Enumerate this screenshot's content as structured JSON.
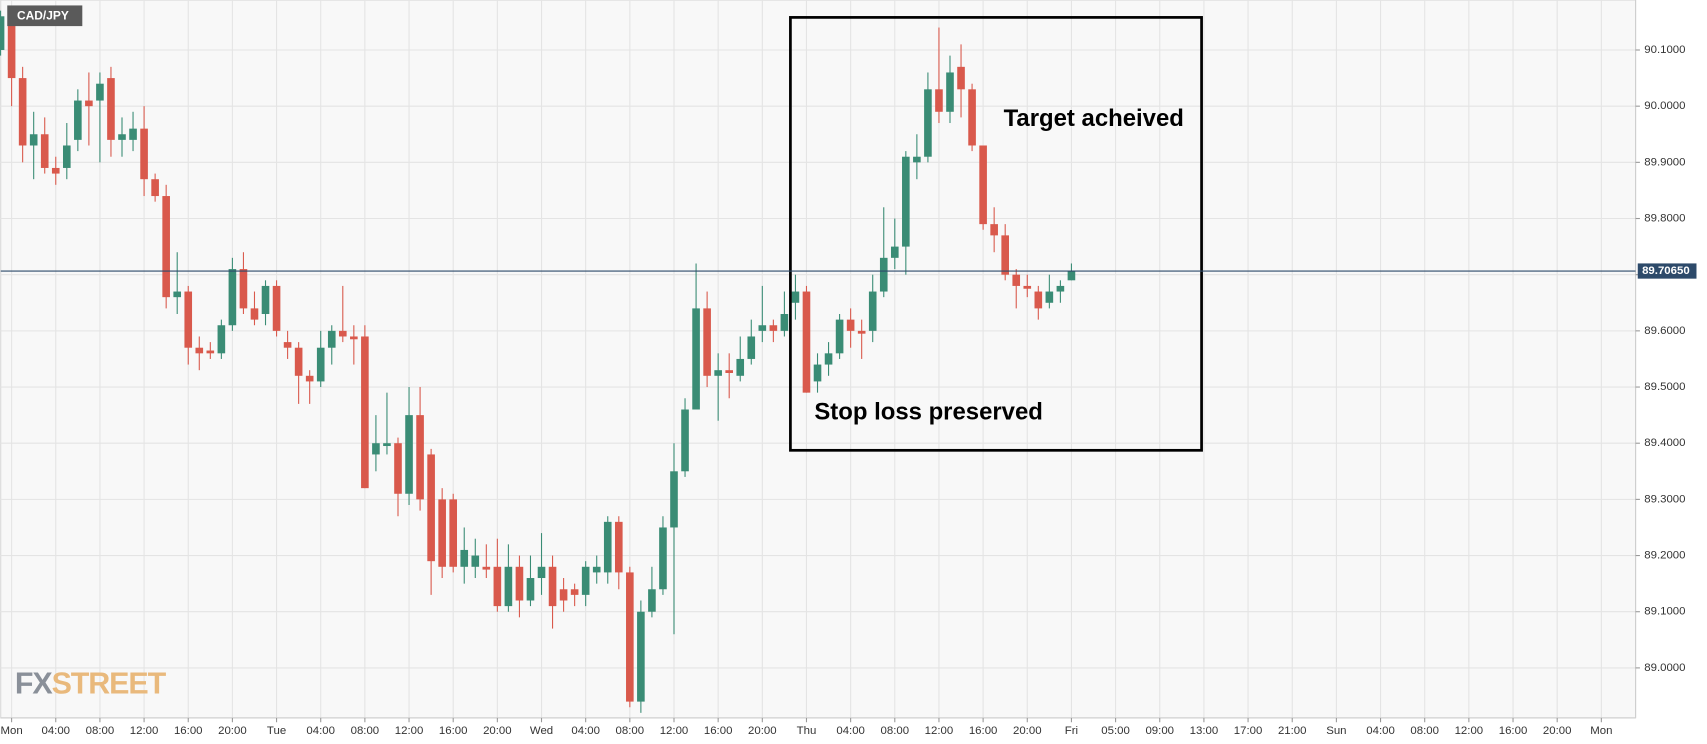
{
  "chart_data": {
    "type": "candlestick",
    "title": "CAD/JPY",
    "logo": [
      "FX",
      "STREET"
    ],
    "annotations": [
      "Target acheived",
      "Stop loss preserved"
    ],
    "up_color": "#3a8c75",
    "down_color": "#d9594c",
    "x": [
      -1,
      0,
      1,
      2,
      3,
      4,
      5,
      6,
      7,
      8,
      9,
      10,
      11,
      12,
      13,
      14,
      15,
      16,
      17,
      18,
      19,
      20,
      21,
      22,
      23,
      24,
      25,
      26,
      27,
      28,
      29,
      30,
      31,
      32,
      33,
      34,
      35,
      36,
      37,
      38,
      39,
      40,
      41,
      42,
      43,
      44,
      45,
      46,
      47,
      48,
      49,
      50,
      51,
      52,
      53,
      54,
      55,
      56,
      57,
      58,
      59,
      60,
      61,
      62,
      63,
      64,
      65,
      66,
      67,
      68,
      69,
      70,
      71,
      72,
      73,
      74,
      75,
      76,
      77,
      78,
      79,
      80,
      81,
      82,
      83,
      84,
      85,
      86,
      87,
      88,
      89,
      90,
      91,
      92,
      93,
      94,
      95,
      96
    ],
    "open": [
      90.1,
      90.15,
      90.05,
      89.93,
      89.95,
      89.89,
      89.89,
      89.94,
      90.01,
      90.01,
      90.05,
      89.94,
      89.94,
      89.96,
      89.87,
      89.84,
      89.66,
      89.67,
      89.57,
      89.565,
      89.56,
      89.61,
      89.71,
      89.64,
      89.63,
      89.68,
      89.58,
      89.57,
      89.52,
      89.51,
      89.57,
      89.6,
      89.59,
      89.59,
      89.38,
      89.395,
      89.4,
      89.31,
      89.45,
      89.38,
      89.3,
      89.3,
      89.18,
      89.18,
      89.18,
      89.18,
      89.11,
      89.18,
      89.12,
      89.16,
      89.18,
      89.14,
      89.14,
      89.13,
      89.17,
      89.17,
      89.26,
      89.17,
      88.94,
      89.1,
      89.14,
      89.25,
      89.35,
      89.46,
      89.64,
      89.52,
      89.53,
      89.52,
      89.55,
      89.6,
      89.61,
      89.6,
      89.65,
      89.67,
      89.51,
      89.54,
      89.56,
      89.62,
      89.6,
      89.6,
      89.67,
      89.73,
      89.75,
      89.9,
      89.91,
      90.03,
      89.99,
      90.07,
      90.03,
      89.93,
      89.79,
      89.77,
      89.7,
      89.68,
      89.67,
      89.65,
      89.67,
      89.69
    ],
    "high": [
      90.17,
      90.17,
      90.07,
      89.99,
      89.98,
      89.91,
      89.97,
      90.03,
      90.06,
      90.06,
      90.07,
      89.98,
      89.99,
      90.0,
      89.88,
      89.86,
      89.74,
      89.68,
      89.59,
      89.58,
      89.62,
      89.73,
      89.74,
      89.67,
      89.69,
      89.69,
      89.6,
      89.58,
      89.53,
      89.6,
      89.61,
      89.68,
      89.61,
      89.61,
      89.45,
      89.49,
      89.41,
      89.5,
      89.5,
      89.39,
      89.32,
      89.31,
      89.25,
      89.23,
      89.22,
      89.23,
      89.22,
      89.2,
      89.2,
      89.24,
      89.2,
      89.16,
      89.15,
      89.19,
      89.2,
      89.27,
      89.27,
      89.18,
      89.12,
      89.18,
      89.27,
      89.4,
      89.48,
      89.72,
      89.67,
      89.56,
      89.56,
      89.59,
      89.62,
      89.68,
      89.62,
      89.67,
      89.7,
      89.68,
      89.56,
      89.58,
      89.63,
      89.64,
      89.62,
      89.7,
      89.82,
      89.8,
      89.92,
      89.95,
      90.06,
      90.14,
      90.09,
      90.11,
      90.04,
      89.93,
      89.82,
      89.79,
      89.71,
      89.7,
      89.68,
      89.7,
      89.69,
      89.72
    ],
    "low": [
      90.09,
      90.0,
      89.9,
      89.87,
      89.88,
      89.86,
      89.87,
      89.92,
      89.93,
      89.9,
      89.91,
      89.91,
      89.92,
      89.84,
      89.83,
      89.64,
      89.63,
      89.54,
      89.53,
      89.55,
      89.55,
      89.6,
      89.63,
      89.61,
      89.61,
      89.59,
      89.55,
      89.47,
      89.47,
      89.5,
      89.54,
      89.58,
      89.54,
      89.32,
      89.35,
      89.38,
      89.27,
      89.29,
      89.28,
      89.13,
      89.16,
      89.17,
      89.15,
      89.16,
      89.16,
      89.1,
      89.1,
      89.09,
      89.11,
      89.13,
      89.07,
      89.1,
      89.11,
      89.11,
      89.15,
      89.15,
      89.14,
      88.93,
      88.92,
      89.09,
      89.13,
      89.06,
      89.34,
      89.46,
      89.5,
      89.44,
      89.48,
      89.51,
      89.54,
      89.58,
      89.58,
      89.59,
      89.62,
      89.49,
      89.49,
      89.52,
      89.55,
      89.57,
      89.55,
      89.58,
      89.66,
      89.71,
      89.7,
      89.87,
      89.9,
      89.97,
      89.97,
      89.98,
      89.92,
      89.78,
      89.74,
      89.69,
      89.64,
      89.66,
      89.62,
      89.64,
      89.65,
      89.69
    ],
    "close": [
      90.16,
      90.05,
      89.93,
      89.95,
      89.89,
      89.88,
      89.93,
      90.01,
      90.0,
      90.04,
      89.94,
      89.95,
      89.96,
      89.87,
      89.84,
      89.66,
      89.67,
      89.57,
      89.56,
      89.56,
      89.61,
      89.71,
      89.64,
      89.62,
      89.68,
      89.6,
      89.57,
      89.52,
      89.51,
      89.57,
      89.6,
      89.59,
      89.585,
      89.32,
      89.4,
      89.4,
      89.31,
      89.45,
      89.3,
      89.19,
      89.18,
      89.18,
      89.21,
      89.2,
      89.175,
      89.11,
      89.18,
      89.12,
      89.16,
      89.18,
      89.11,
      89.12,
      89.13,
      89.18,
      89.18,
      89.26,
      89.17,
      88.94,
      89.1,
      89.14,
      89.25,
      89.35,
      89.46,
      89.64,
      89.52,
      89.53,
      89.525,
      89.55,
      89.59,
      89.61,
      89.6,
      89.63,
      89.67,
      89.49,
      89.54,
      89.56,
      89.62,
      89.6,
      89.595,
      89.67,
      89.73,
      89.75,
      89.91,
      89.91,
      90.03,
      89.99,
      90.06,
      90.03,
      89.93,
      89.79,
      89.77,
      89.7,
      89.68,
      89.675,
      89.64,
      89.67,
      89.68,
      89.7065
    ],
    "last_price": {
      "value": 89.7065,
      "label": "89.70650"
    },
    "xlim": [
      -0.985,
      147.1
    ],
    "ylim": [
      88.911,
      90.189
    ],
    "xticks": [
      {
        "value": 0,
        "label": "Mon"
      },
      {
        "value": 4,
        "label": "04:00"
      },
      {
        "value": 8,
        "label": "08:00"
      },
      {
        "value": 12,
        "label": "12:00"
      },
      {
        "value": 16,
        "label": "16:00"
      },
      {
        "value": 20,
        "label": "20:00"
      },
      {
        "value": 24,
        "label": "Tue"
      },
      {
        "value": 28,
        "label": "04:00"
      },
      {
        "value": 32,
        "label": "08:00"
      },
      {
        "value": 36,
        "label": "12:00"
      },
      {
        "value": 40,
        "label": "16:00"
      },
      {
        "value": 44,
        "label": "20:00"
      },
      {
        "value": 48,
        "label": "Wed"
      },
      {
        "value": 52,
        "label": "04:00"
      },
      {
        "value": 56,
        "label": "08:00"
      },
      {
        "value": 60,
        "label": "12:00"
      },
      {
        "value": 64,
        "label": "16:00"
      },
      {
        "value": 68,
        "label": "20:00"
      },
      {
        "value": 72,
        "label": "Thu"
      },
      {
        "value": 76,
        "label": "04:00"
      },
      {
        "value": 80,
        "label": "08:00"
      },
      {
        "value": 84,
        "label": "12:00"
      },
      {
        "value": 88,
        "label": "16:00"
      },
      {
        "value": 92,
        "label": "20:00"
      },
      {
        "value": 96,
        "label": "Fri"
      },
      {
        "value": 100,
        "label": "05:00"
      },
      {
        "value": 104,
        "label": "09:00"
      },
      {
        "value": 108,
        "label": "13:00"
      },
      {
        "value": 112,
        "label": "17:00"
      },
      {
        "value": 116,
        "label": "21:00"
      },
      {
        "value": 120,
        "label": "Sun"
      },
      {
        "value": 124,
        "label": "04:00"
      },
      {
        "value": 128,
        "label": "08:00"
      },
      {
        "value": 132,
        "label": "12:00"
      },
      {
        "value": 136,
        "label": "16:00"
      },
      {
        "value": 140,
        "label": "20:00"
      },
      {
        "value": 144,
        "label": "Mon"
      }
    ],
    "yticks": [
      {
        "value": 89.0,
        "label": "89.0000"
      },
      {
        "value": 89.1,
        "label": "89.1000"
      },
      {
        "value": 89.2,
        "label": "89.2000"
      },
      {
        "value": 89.3,
        "label": "89.3000"
      },
      {
        "value": 89.4,
        "label": "89.4000"
      },
      {
        "value": 89.5,
        "label": "89.5000"
      },
      {
        "value": 89.6,
        "label": "89.6000"
      },
      {
        "value": 89.7,
        "label": "89.7000"
      },
      {
        "value": 89.8,
        "label": "89.8000"
      },
      {
        "value": 89.9,
        "label": "89.9000"
      },
      {
        "value": 90.0,
        "label": "90.0000"
      },
      {
        "value": 90.1,
        "label": "90.1000"
      }
    ],
    "grid": true
  }
}
